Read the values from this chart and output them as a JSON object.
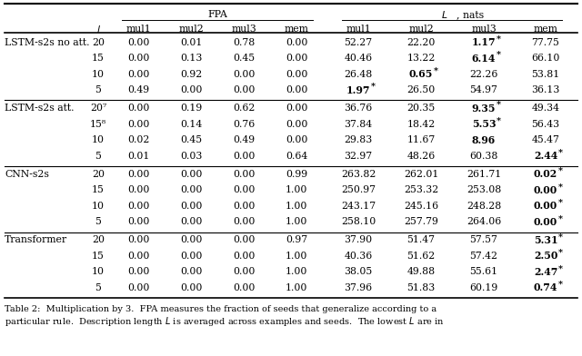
{
  "caption": "Table 2:  Multiplication by 3.  FPA measures the fraction of seeds that generalize according to a\nparticular rule.  Description length $L$ is averaged across examples and seeds.  The lowest $L$ are in",
  "groups": [
    {
      "name": "LSTM-s2s no att.",
      "rows": [
        {
          "l": "20",
          "vals": [
            "0.00",
            "0.01",
            "0.78",
            "0.00",
            "52.27",
            "22.20",
            "1.17*",
            "77.75"
          ],
          "bold": [
            6
          ]
        },
        {
          "l": "15",
          "vals": [
            "0.00",
            "0.13",
            "0.45",
            "0.00",
            "40.46",
            "13.22",
            "6.14*",
            "66.10"
          ],
          "bold": [
            6
          ]
        },
        {
          "l": "10",
          "vals": [
            "0.00",
            "0.92",
            "0.00",
            "0.00",
            "26.48",
            "0.65*",
            "22.26",
            "53.81"
          ],
          "bold": [
            5
          ]
        },
        {
          "l": "5",
          "vals": [
            "0.49",
            "0.00",
            "0.00",
            "0.00",
            "1.97*",
            "26.50",
            "54.97",
            "36.13"
          ],
          "bold": [
            4
          ]
        }
      ]
    },
    {
      "name": "LSTM-s2s att.",
      "rows": [
        {
          "l": "20⁷",
          "vals": [
            "0.00",
            "0.19",
            "0.62",
            "0.00",
            "36.76",
            "20.35",
            "9.35*",
            "49.34"
          ],
          "bold": [
            6
          ]
        },
        {
          "l": "15⁸",
          "vals": [
            "0.00",
            "0.14",
            "0.76",
            "0.00",
            "37.84",
            "18.42",
            "5.53*",
            "56.43"
          ],
          "bold": [
            6
          ]
        },
        {
          "l": "10",
          "vals": [
            "0.02",
            "0.45",
            "0.49",
            "0.00",
            "29.83",
            "11.67",
            "8.96",
            "45.47"
          ],
          "bold": [
            6
          ]
        },
        {
          "l": "5",
          "vals": [
            "0.01",
            "0.03",
            "0.00",
            "0.64",
            "32.97",
            "48.26",
            "60.38",
            "2.44*"
          ],
          "bold": [
            7
          ]
        }
      ]
    },
    {
      "name": "CNN-s2s",
      "rows": [
        {
          "l": "20",
          "vals": [
            "0.00",
            "0.00",
            "0.00",
            "0.99",
            "263.82",
            "262.01",
            "261.71",
            "0.02*"
          ],
          "bold": [
            7
          ]
        },
        {
          "l": "15",
          "vals": [
            "0.00",
            "0.00",
            "0.00",
            "1.00",
            "250.97",
            "253.32",
            "253.08",
            "0.00*"
          ],
          "bold": [
            7
          ]
        },
        {
          "l": "10",
          "vals": [
            "0.00",
            "0.00",
            "0.00",
            "1.00",
            "243.17",
            "245.16",
            "248.28",
            "0.00*"
          ],
          "bold": [
            7
          ]
        },
        {
          "l": "5",
          "vals": [
            "0.00",
            "0.00",
            "0.00",
            "1.00",
            "258.10",
            "257.79",
            "264.06",
            "0.00*"
          ],
          "bold": [
            7
          ]
        }
      ]
    },
    {
      "name": "Transformer",
      "rows": [
        {
          "l": "20",
          "vals": [
            "0.00",
            "0.00",
            "0.00",
            "0.97",
            "37.90",
            "51.47",
            "57.57",
            "5.31*"
          ],
          "bold": [
            7
          ]
        },
        {
          "l": "15",
          "vals": [
            "0.00",
            "0.00",
            "0.00",
            "1.00",
            "40.36",
            "51.62",
            "57.42",
            "2.50*"
          ],
          "bold": [
            7
          ]
        },
        {
          "l": "10",
          "vals": [
            "0.00",
            "0.00",
            "0.00",
            "1.00",
            "38.05",
            "49.88",
            "55.61",
            "2.47*"
          ],
          "bold": [
            7
          ]
        },
        {
          "l": "5",
          "vals": [
            "0.00",
            "0.00",
            "0.00",
            "1.00",
            "37.96",
            "51.83",
            "60.19",
            "0.74*"
          ],
          "bold": [
            7
          ]
        }
      ]
    }
  ]
}
